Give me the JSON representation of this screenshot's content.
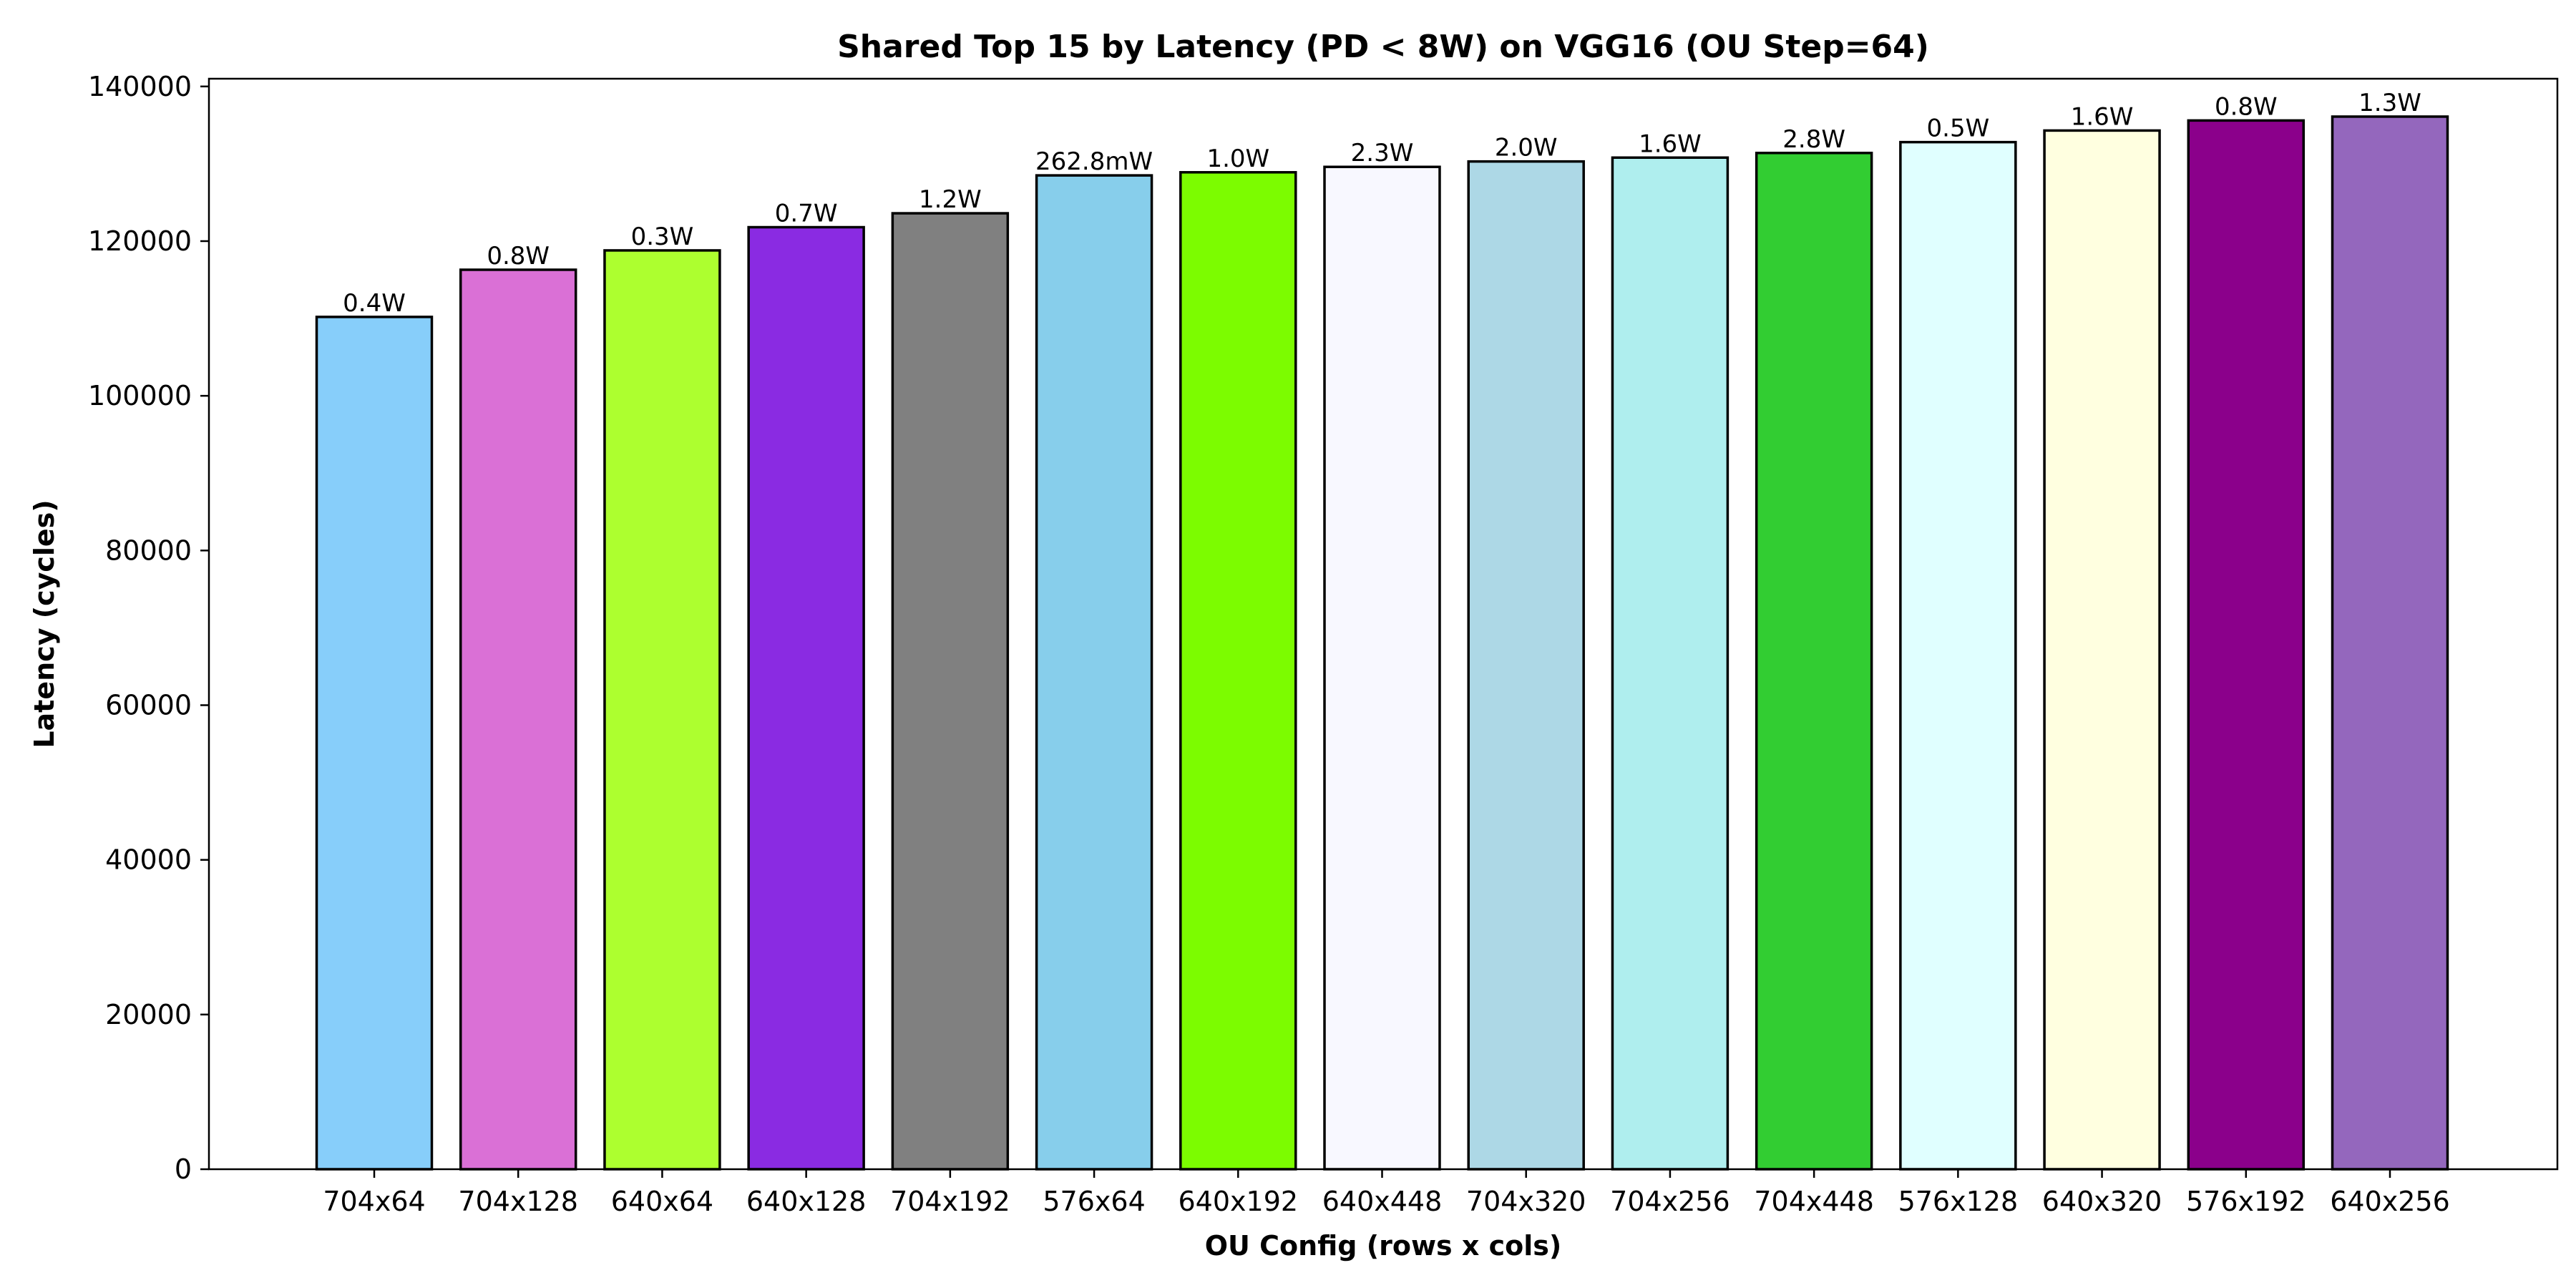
{
  "chart_data": {
    "type": "bar",
    "title": "Shared Top 15 by Latency (PD < 8W) on VGG16 (OU Step=64)",
    "xlabel": "OU Config (rows x cols)",
    "ylabel": "Latency (cycles)",
    "ylim": [
      0,
      141000
    ],
    "yticks": [
      0,
      20000,
      40000,
      60000,
      80000,
      100000,
      120000,
      140000
    ],
    "grid": false,
    "categories": [
      "704x64",
      "704x128",
      "640x64",
      "640x128",
      "704x192",
      "576x64",
      "640x192",
      "640x448",
      "704x320",
      "704x256",
      "704x448",
      "576x128",
      "640x320",
      "576x192",
      "640x256"
    ],
    "values": [
      110200,
      116300,
      118800,
      121800,
      123600,
      128500,
      128900,
      129600,
      130300,
      130800,
      131400,
      132800,
      134300,
      135600,
      136100
    ],
    "bar_labels": [
      "0.4W",
      "0.8W",
      "0.3W",
      "0.7W",
      "1.2W",
      "262.8mW",
      "1.0W",
      "2.3W",
      "2.0W",
      "1.6W",
      "2.8W",
      "0.5W",
      "1.6W",
      "0.8W",
      "1.3W"
    ],
    "colors": [
      "#87cefa",
      "#da70d6",
      "#adff2f",
      "#8a2be2",
      "#808080",
      "#87ceeb",
      "#7cfc00",
      "#f8f8ff",
      "#add8e6",
      "#afeeee",
      "#32cd32",
      "#e0ffff",
      "#ffffe0",
      "#8b008b",
      "#9467bd"
    ]
  }
}
